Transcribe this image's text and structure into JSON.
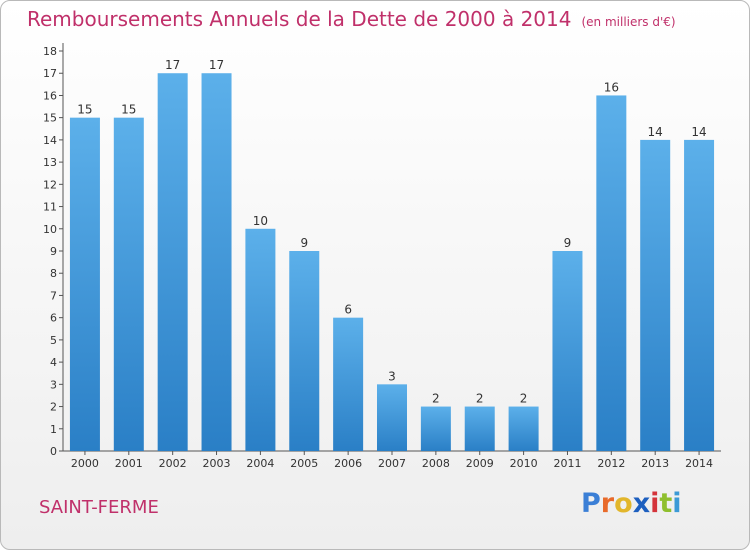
{
  "title": "Remboursements Annuels de la Dette de 2000 à 2014",
  "unit_label": "(en milliers d'€)",
  "commune": "SAINT-FERME",
  "logo": {
    "letters": [
      "P",
      "r",
      "o",
      "x",
      "i",
      "t",
      "i"
    ],
    "colors": [
      "#3b7fd6",
      "#e86a2a",
      "#e2b62b",
      "#1d5fbf",
      "#d4343b",
      "#8fbf2e",
      "#3b9ad6"
    ]
  },
  "colors": {
    "bar": "#4a9fe0",
    "title": "#c0306a"
  },
  "chart_data": {
    "type": "bar",
    "categories": [
      "2000",
      "2001",
      "2002",
      "2003",
      "2004",
      "2005",
      "2006",
      "2007",
      "2008",
      "2009",
      "2010",
      "2011",
      "2012",
      "2013",
      "2014"
    ],
    "values": [
      15,
      15,
      17,
      17,
      10,
      9,
      6,
      3,
      2,
      2,
      2,
      9,
      16,
      14,
      14
    ],
    "data_labels": [
      "15",
      "15",
      "17",
      "17",
      "10",
      "9",
      "6",
      "3",
      "2",
      "2",
      "2",
      "9",
      "16",
      "14",
      "14"
    ],
    "y_ticks": [
      "0",
      "1",
      "2",
      "3",
      "4",
      "5",
      "6",
      "7",
      "8",
      "9",
      "10",
      "11",
      "12",
      "13",
      "14",
      "15",
      "16",
      "17",
      "18"
    ],
    "ylim": [
      0,
      18
    ],
    "grid": false
  }
}
